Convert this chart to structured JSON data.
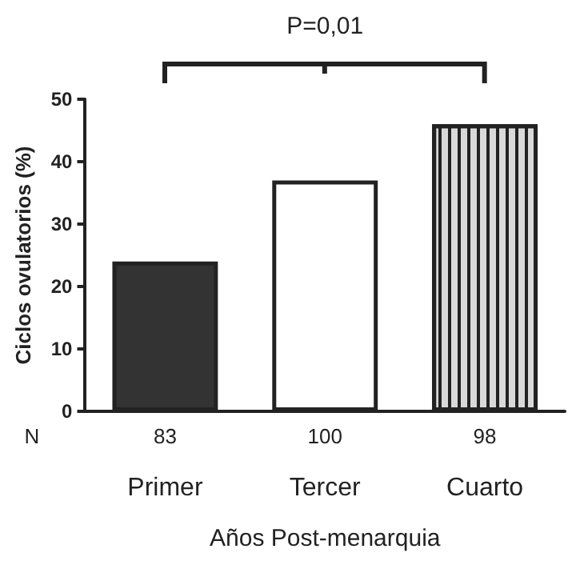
{
  "chart_data": {
    "type": "bar",
    "xlabel": "Años Post-menarquia",
    "ylabel": "Ciclos ovulatorios (%)",
    "categories": [
      "Primer",
      "Tercer",
      "Cuarto"
    ],
    "values": [
      24,
      37,
      46
    ],
    "colors": [
      "#333333",
      "#ffffff",
      "#d9d9d9"
    ],
    "ylim": [
      0,
      50
    ],
    "yticks": [
      0,
      10,
      20,
      30,
      40,
      50
    ],
    "grid": false,
    "annotations": [
      "P=0,01",
      "N",
      "83",
      "100",
      "98"
    ]
  }
}
